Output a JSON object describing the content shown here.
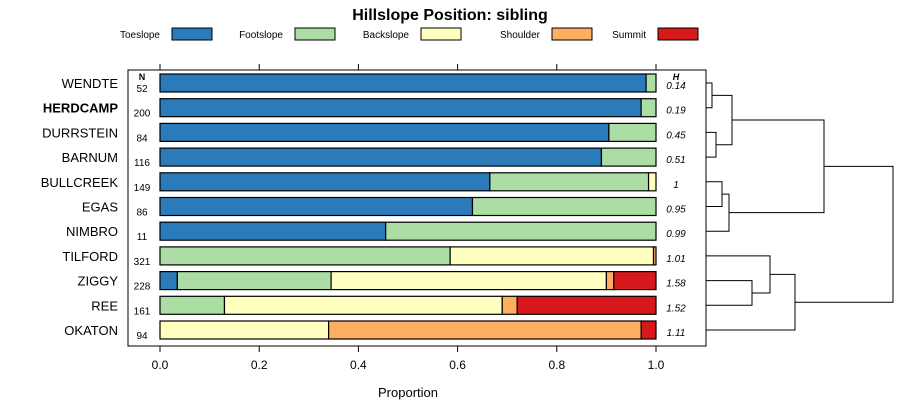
{
  "chart_data": {
    "type": "bar",
    "subtype": "stacked-horizontal-proportion",
    "title": "Hillslope Position: sibling",
    "xlabel": "Proportion",
    "ylabel": "",
    "xlim": [
      0,
      1
    ],
    "x_ticks": [
      "0.0",
      "0.2",
      "0.4",
      "0.6",
      "0.8",
      "1.0"
    ],
    "n_header": "N",
    "h_header": "H",
    "legend": [
      {
        "name": "Toeslope",
        "color": "#2b7bba"
      },
      {
        "name": "Footslope",
        "color": "#abdda4"
      },
      {
        "name": "Backslope",
        "color": "#ffffbf"
      },
      {
        "name": "Shoulder",
        "color": "#fdae61"
      },
      {
        "name": "Summit",
        "color": "#d7191c"
      }
    ],
    "rows": [
      {
        "label": "WENDTE",
        "bold": false,
        "n": "52",
        "h": "0.14",
        "values": [
          0.98,
          0.02,
          0,
          0,
          0
        ]
      },
      {
        "label": "HERDCAMP",
        "bold": true,
        "n": "200",
        "h": "0.19",
        "values": [
          0.97,
          0.03,
          0,
          0,
          0
        ]
      },
      {
        "label": "DURRSTEIN",
        "bold": false,
        "n": "84",
        "h": "0.45",
        "values": [
          0.905,
          0.095,
          0,
          0,
          0
        ]
      },
      {
        "label": "BARNUM",
        "bold": false,
        "n": "116",
        "h": "0.51",
        "values": [
          0.89,
          0.11,
          0,
          0,
          0
        ]
      },
      {
        "label": "BULLCREEK",
        "bold": false,
        "n": "149",
        "h": "1",
        "values": [
          0.665,
          0.32,
          0.015,
          0,
          0
        ]
      },
      {
        "label": "EGAS",
        "bold": false,
        "n": "86",
        "h": "0.95",
        "values": [
          0.63,
          0.37,
          0,
          0,
          0
        ]
      },
      {
        "label": "NIMBRO",
        "bold": false,
        "n": "11",
        "h": "0.99",
        "values": [
          0.455,
          0.545,
          0,
          0,
          0
        ]
      },
      {
        "label": "TILFORD",
        "bold": false,
        "n": "321",
        "h": "1.01",
        "values": [
          0,
          0.585,
          0.41,
          0.005,
          0
        ]
      },
      {
        "label": "ZIGGY",
        "bold": false,
        "n": "228",
        "h": "1.58",
        "values": [
          0.035,
          0.31,
          0.555,
          0.015,
          0.085
        ]
      },
      {
        "label": "REE",
        "bold": false,
        "n": "161",
        "h": "1.52",
        "values": [
          0,
          0.13,
          0.56,
          0.03,
          0.28
        ]
      },
      {
        "label": "OKATON",
        "bold": false,
        "n": "94",
        "h": "1.11",
        "values": [
          0,
          0,
          0.34,
          0.63,
          0.03
        ]
      }
    ],
    "dendrogram": {
      "clusters": "((((WENDTE,HERDCAMP),(DURRSTEIN,BARNUM)),((BULLCREEK,EGAS),NIMBRO)),((TILFORD,(ZIGGY,REE)),OKATON))"
    }
  }
}
